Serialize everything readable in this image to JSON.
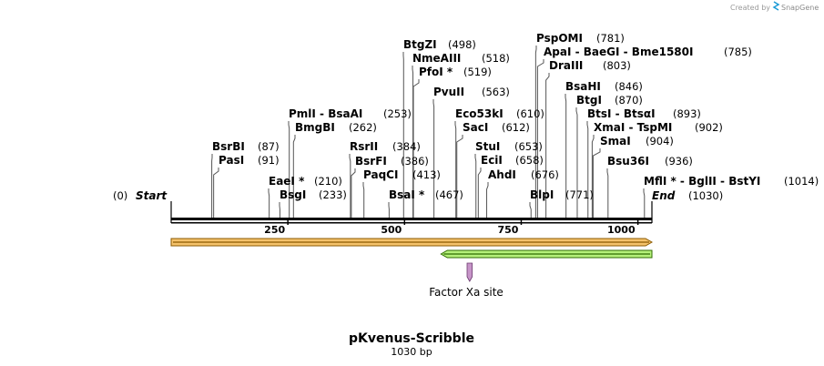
{
  "branding": {
    "created_by": "Created by",
    "brand": "SnapGene"
  },
  "plasmid": {
    "name": "pKvenus-Scribble",
    "length": 1030,
    "length_label": "1030 bp"
  },
  "axis": {
    "ticks": [
      250,
      500,
      750,
      1000
    ]
  },
  "start_label": {
    "pos_text": "(0)",
    "name": "Start"
  },
  "end_label": {
    "name": "End",
    "pos_text": "(1030)"
  },
  "enzymes": [
    {
      "id": "btgzi",
      "name": "BtgZI",
      "pos": 498,
      "pos_text": "(498)"
    },
    {
      "id": "nmeaiii",
      "name": "NmeAIII",
      "pos": 518,
      "pos_text": "(518)"
    },
    {
      "id": "pfoi",
      "name": "PfoI *",
      "pos": 519,
      "pos_text": "(519)"
    },
    {
      "id": "pvuii",
      "name": "PvuII",
      "pos": 563,
      "pos_text": "(563)"
    },
    {
      "id": "pmli",
      "name": "PmlI  - BsaAI",
      "pos": 253,
      "pos_text": "(253)"
    },
    {
      "id": "bmgbi",
      "name": "BmgBI",
      "pos": 262,
      "pos_text": "(262)"
    },
    {
      "id": "bsrbi",
      "name": "BsrBI",
      "pos": 87,
      "pos_text": "(87)"
    },
    {
      "id": "pasi",
      "name": "PasI",
      "pos": 91,
      "pos_text": "(91)"
    },
    {
      "id": "eaei",
      "name": "EaeI *",
      "pos": 210,
      "pos_text": "(210)"
    },
    {
      "id": "bsgi",
      "name": "BsgI",
      "pos": 233,
      "pos_text": "(233)"
    },
    {
      "id": "rsrii",
      "name": "RsrII",
      "pos": 384,
      "pos_text": "(384)"
    },
    {
      "id": "bsrfi",
      "name": "BsrFI",
      "pos": 386,
      "pos_text": "(386)"
    },
    {
      "id": "paqci",
      "name": "PaqCI",
      "pos": 413,
      "pos_text": "(413)"
    },
    {
      "id": "bsai",
      "name": "BsaI *",
      "pos": 467,
      "pos_text": "(467)"
    },
    {
      "id": "eco53ki",
      "name": "Eco53kI",
      "pos": 610,
      "pos_text": "(610)"
    },
    {
      "id": "saci",
      "name": "SacI",
      "pos": 612,
      "pos_text": "(612)"
    },
    {
      "id": "stui",
      "name": "StuI",
      "pos": 653,
      "pos_text": "(653)"
    },
    {
      "id": "ecii",
      "name": "EciI",
      "pos": 658,
      "pos_text": "(658)"
    },
    {
      "id": "ahdi",
      "name": "AhdI",
      "pos": 676,
      "pos_text": "(676)"
    },
    {
      "id": "pspomi",
      "name": "PspOMI",
      "pos": 781,
      "pos_text": "(781)"
    },
    {
      "id": "apai",
      "name": "ApaI  - BaeGI  - Bme1580I",
      "pos": 785,
      "pos_text": "(785)"
    },
    {
      "id": "draiii",
      "name": "DraIII",
      "pos": 803,
      "pos_text": "(803)"
    },
    {
      "id": "bsahi",
      "name": "BsaHI",
      "pos": 846,
      "pos_text": "(846)"
    },
    {
      "id": "btgi",
      "name": "BtgI",
      "pos": 870,
      "pos_text": "(870)"
    },
    {
      "id": "btsi",
      "name": "BtsI  - BtsαI",
      "pos": 893,
      "pos_text": "(893)"
    },
    {
      "id": "xmai",
      "name": "XmaI  - TspMI",
      "pos": 902,
      "pos_text": "(902)"
    },
    {
      "id": "smai",
      "name": "SmaI",
      "pos": 904,
      "pos_text": "(904)"
    },
    {
      "id": "bsu36i",
      "name": "Bsu36I",
      "pos": 936,
      "pos_text": "(936)"
    },
    {
      "id": "blpi",
      "name": "BlpI",
      "pos": 771,
      "pos_text": "(771)"
    },
    {
      "id": "mfli",
      "name": "MflI *  - BglII  - BstYI",
      "pos": 1014,
      "pos_text": "(1014)"
    }
  ],
  "features": [
    {
      "id": "orange",
      "direction": "forward",
      "start": 1,
      "end": 1030,
      "color": "#f5c26b",
      "stroke": "#8b5a00"
    },
    {
      "id": "green",
      "direction": "reverse",
      "start": 578,
      "end": 1030,
      "color": "#b5f07a",
      "stroke": "#2e6b00"
    },
    {
      "id": "factor-xa",
      "label": "Factor Xa site",
      "start": 634,
      "end": 645,
      "color": "#c795c9",
      "stroke": "#6b3a6e"
    }
  ]
}
